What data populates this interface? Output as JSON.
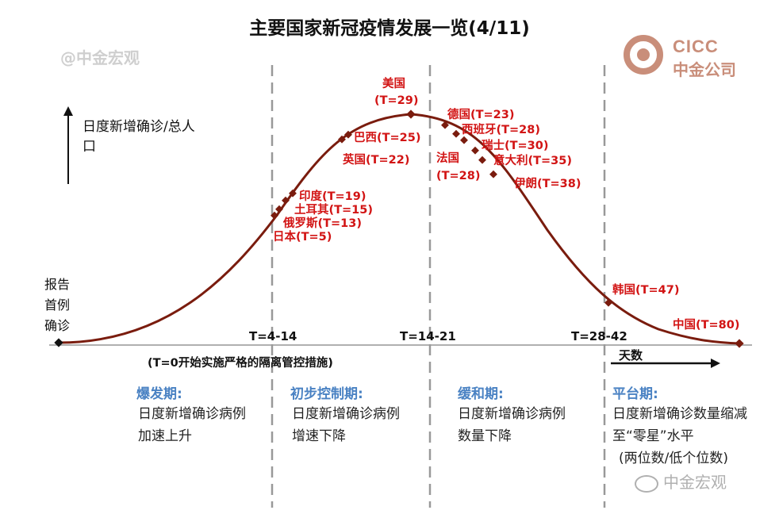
{
  "title": "主要国家新冠疫情发展一览(4/11)",
  "watermark_top": "@中金宏观",
  "logo": {
    "en": "CICC",
    "cn": "中金公司"
  },
  "y_axis_label": "日度新增确诊/总人口",
  "first_case_label": "报告首例确诊",
  "x_axis_note": "(T=0开始实施严格的隔离管控措施)",
  "x_axis_label": "天数",
  "t_ranges": [
    "T=4-14",
    "T=14-21",
    "T=28-42"
  ],
  "countries": [
    {
      "label": "美国",
      "t": "(T=29)"
    },
    {
      "label": "巴西(T=25)"
    },
    {
      "label": "英国(T=22)"
    },
    {
      "label": "印度(T=19)"
    },
    {
      "label": "土耳其(T=15)"
    },
    {
      "label": "俄罗斯(T=13)"
    },
    {
      "label": "日本(T=5)"
    },
    {
      "label": "德国(T=23)"
    },
    {
      "label": "西班牙(T=28)"
    },
    {
      "label": "瑞士(T=30)"
    },
    {
      "label": "意大利(T=35)"
    },
    {
      "label": "伊朗(T=38)"
    },
    {
      "label": "法国",
      "t": "(T=28)"
    },
    {
      "label": "韩国(T=47)"
    },
    {
      "label": "中国(T=80)"
    }
  ],
  "phases": [
    {
      "title": "爆发期:",
      "desc": "日度新增确诊病例加速上升"
    },
    {
      "title": "初步控制期:",
      "desc": "日度新增确诊病例增速下降"
    },
    {
      "title": "缓和期:",
      "desc": "日度新增确诊病例数量下降"
    },
    {
      "title": "平台期:",
      "desc": "日度新增确诊数量缩减至“零星”水平",
      "note": "(两位数/低个位数)"
    }
  ],
  "watermark_bottom": "中金宏观",
  "colors": {
    "curve": "#7a1c0e",
    "country": "#d21414",
    "phase_title": "#4a82c3",
    "logo": "#c98e7a"
  }
}
